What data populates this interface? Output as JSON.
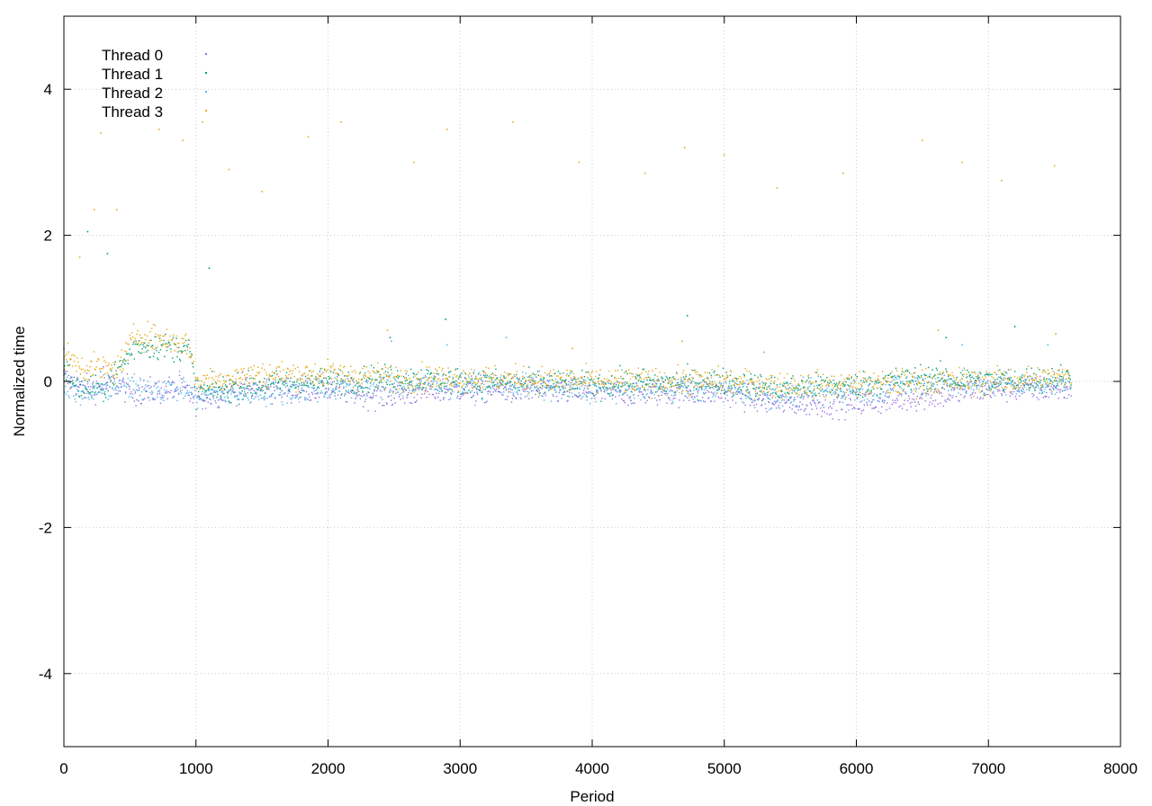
{
  "chart_data": {
    "type": "scatter",
    "title": "",
    "xlabel": "Period",
    "ylabel": "Normalized time",
    "xlim": [
      0,
      8000
    ],
    "ylim": [
      -5,
      5
    ],
    "xticks": [
      0,
      1000,
      2000,
      3000,
      4000,
      5000,
      6000,
      7000,
      8000
    ],
    "yticks": [
      -4,
      -2,
      0,
      2,
      4
    ],
    "grid": true,
    "legend_position": "top-left",
    "series": [
      {
        "name": "Thread 0",
        "color": "#9370db",
        "trend": [
          [
            0,
            0.05
          ],
          [
            150,
            -0.1
          ],
          [
            400,
            -0.05
          ],
          [
            550,
            -0.15
          ],
          [
            900,
            -0.1
          ],
          [
            1000,
            -0.25
          ],
          [
            1300,
            -0.1
          ],
          [
            2000,
            -0.1
          ],
          [
            2400,
            -0.2
          ],
          [
            3000,
            -0.1
          ],
          [
            4000,
            -0.15
          ],
          [
            5000,
            -0.15
          ],
          [
            5400,
            -0.3
          ],
          [
            6000,
            -0.3
          ],
          [
            6600,
            -0.2
          ],
          [
            7000,
            -0.1
          ],
          [
            7630,
            -0.1
          ]
        ],
        "outliers": [
          [
            0,
            0.45
          ],
          [
            50,
            0.3
          ],
          [
            300,
            0.2
          ]
        ]
      },
      {
        "name": "Thread 1",
        "color": "#009e73",
        "trend": [
          [
            0,
            0.2
          ],
          [
            100,
            -0.1
          ],
          [
            300,
            -0.1
          ],
          [
            550,
            0.5
          ],
          [
            950,
            0.45
          ],
          [
            1000,
            -0.15
          ],
          [
            1500,
            -0.05
          ],
          [
            2000,
            0.0
          ],
          [
            2500,
            0.05
          ],
          [
            3000,
            0.0
          ],
          [
            4000,
            -0.05
          ],
          [
            5000,
            0.0
          ],
          [
            5400,
            -0.1
          ],
          [
            6000,
            -0.05
          ],
          [
            6500,
            0.05
          ],
          [
            7000,
            0.0
          ],
          [
            7630,
            0.05
          ]
        ],
        "outliers": [
          [
            180,
            2.05
          ],
          [
            330,
            1.75
          ],
          [
            1100,
            1.55
          ],
          [
            2470,
            0.6
          ],
          [
            2890,
            0.85
          ],
          [
            4720,
            0.9
          ],
          [
            6680,
            0.6
          ],
          [
            7200,
            0.75
          ]
        ]
      },
      {
        "name": "Thread 2",
        "color": "#56b4e9",
        "trend": [
          [
            0,
            0.0
          ],
          [
            150,
            -0.2
          ],
          [
            400,
            -0.05
          ],
          [
            550,
            -0.1
          ],
          [
            900,
            -0.1
          ],
          [
            1000,
            -0.2
          ],
          [
            1500,
            -0.15
          ],
          [
            2000,
            -0.1
          ],
          [
            2500,
            -0.05
          ],
          [
            3000,
            -0.05
          ],
          [
            4000,
            -0.1
          ],
          [
            5000,
            -0.1
          ],
          [
            5400,
            -0.2
          ],
          [
            6000,
            -0.15
          ],
          [
            6600,
            0.0
          ],
          [
            7000,
            -0.05
          ],
          [
            7630,
            -0.05
          ]
        ],
        "outliers": [
          [
            2480,
            0.55
          ],
          [
            2900,
            0.5
          ],
          [
            3350,
            0.6
          ],
          [
            5300,
            0.4
          ],
          [
            6800,
            0.5
          ],
          [
            7450,
            0.5
          ]
        ]
      },
      {
        "name": "Thread 3",
        "color": "#e6a817",
        "trend": [
          [
            0,
            0.35
          ],
          [
            150,
            0.2
          ],
          [
            400,
            0.15
          ],
          [
            550,
            0.65
          ],
          [
            950,
            0.5
          ],
          [
            1000,
            0.0
          ],
          [
            1500,
            0.1
          ],
          [
            2000,
            0.1
          ],
          [
            2500,
            0.05
          ],
          [
            3000,
            0.05
          ],
          [
            4000,
            0.0
          ],
          [
            5000,
            0.0
          ],
          [
            5400,
            -0.05
          ],
          [
            6000,
            -0.05
          ],
          [
            6500,
            0.0
          ],
          [
            7000,
            0.0
          ],
          [
            7630,
            0.05
          ]
        ],
        "outliers": [
          [
            120,
            1.7
          ],
          [
            230,
            2.35
          ],
          [
            280,
            3.4
          ],
          [
            400,
            2.35
          ],
          [
            720,
            3.45
          ],
          [
            900,
            3.3
          ],
          [
            1050,
            3.55
          ],
          [
            1250,
            2.9
          ],
          [
            1500,
            2.6
          ],
          [
            1850,
            3.35
          ],
          [
            2100,
            3.55
          ],
          [
            2650,
            3.0
          ],
          [
            2900,
            3.45
          ],
          [
            3400,
            3.55
          ],
          [
            3900,
            3.0
          ],
          [
            4400,
            2.85
          ],
          [
            4700,
            3.2
          ],
          [
            5000,
            3.1
          ],
          [
            5400,
            2.65
          ],
          [
            5900,
            2.85
          ],
          [
            6500,
            3.3
          ],
          [
            6800,
            3.0
          ],
          [
            7100,
            2.75
          ],
          [
            7500,
            2.95
          ],
          [
            2450,
            0.7
          ],
          [
            3850,
            0.45
          ],
          [
            4680,
            0.55
          ],
          [
            6620,
            0.7
          ],
          [
            7510,
            0.65
          ]
        ]
      }
    ]
  }
}
